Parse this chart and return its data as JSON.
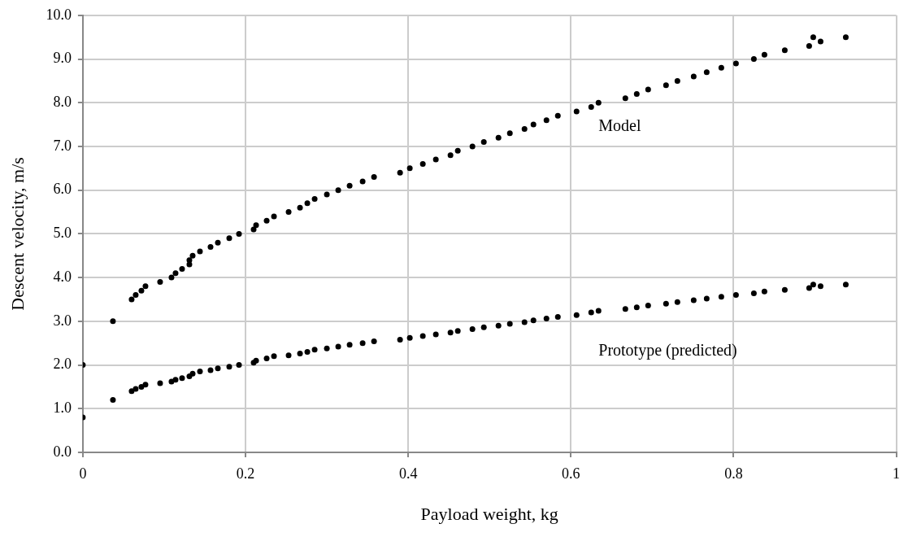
{
  "chart_data": {
    "type": "scatter",
    "xlabel": "Payload weight, kg",
    "ylabel": "Descent velocity, m/s",
    "xlim": [
      0,
      1
    ],
    "xticks": [
      0,
      0.2,
      0.4,
      0.6,
      0.8,
      1
    ],
    "ylim": [
      0,
      10
    ],
    "yticks": [
      {
        "value": 0,
        "label": "0.0"
      },
      {
        "value": 1,
        "label": "1.0"
      },
      {
        "value": 2,
        "label": "2.0"
      },
      {
        "value": 3,
        "label": "3.0"
      },
      {
        "value": 4,
        "label": "4.0"
      },
      {
        "value": 5,
        "label": "5.0"
      },
      {
        "value": 6,
        "label": "6.0"
      },
      {
        "value": 7,
        "label": "7.0"
      },
      {
        "value": 8,
        "label": "8.0"
      },
      {
        "value": 9,
        "label": "9.0"
      },
      {
        "value": 10,
        "label": "10.0"
      }
    ],
    "grid": true,
    "legend": false,
    "marker": "circle",
    "series": [
      {
        "name": "Model",
        "color": "#000000",
        "x": [
          0,
          0.037,
          0.06,
          0.065,
          0.072,
          0.077,
          0.095,
          0.109,
          0.114,
          0.122,
          0.131,
          0.131,
          0.135,
          0.144,
          0.157,
          0.166,
          0.18,
          0.192,
          0.21,
          0.213,
          0.226,
          0.235,
          0.253,
          0.267,
          0.276,
          0.285,
          0.3,
          0.314,
          0.328,
          0.344,
          0.358,
          0.39,
          0.402,
          0.418,
          0.434,
          0.452,
          0.461,
          0.479,
          0.493,
          0.511,
          0.525,
          0.543,
          0.554,
          0.57,
          0.584,
          0.607,
          0.625,
          0.634,
          0.667,
          0.681,
          0.695,
          0.717,
          0.731,
          0.751,
          0.767,
          0.785,
          0.803,
          0.825,
          0.838,
          0.863,
          0.893,
          0.898,
          0.907,
          0.938
        ],
        "values": [
          2.0,
          3.0,
          3.5,
          3.6,
          3.7,
          3.8,
          3.9,
          4.0,
          4.1,
          4.2,
          4.3,
          4.4,
          4.5,
          4.6,
          4.7,
          4.8,
          4.9,
          5.0,
          5.1,
          5.2,
          5.3,
          5.4,
          5.5,
          5.6,
          5.7,
          5.8,
          5.9,
          6.0,
          6.1,
          6.2,
          6.3,
          6.4,
          6.5,
          6.6,
          6.7,
          6.8,
          6.9,
          7.0,
          7.1,
          7.2,
          7.3,
          7.4,
          7.5,
          7.6,
          7.7,
          7.8,
          7.9,
          8.0,
          8.1,
          8.2,
          8.3,
          8.4,
          8.5,
          8.6,
          8.7,
          8.8,
          8.9,
          9.0,
          9.1,
          9.2,
          9.3,
          9.5,
          9.4,
          9.5
        ]
      },
      {
        "name": "Prototype (predicted)",
        "color": "#000000",
        "x": [
          0,
          0.037,
          0.06,
          0.065,
          0.072,
          0.077,
          0.095,
          0.109,
          0.114,
          0.122,
          0.131,
          0.135,
          0.144,
          0.157,
          0.166,
          0.18,
          0.192,
          0.21,
          0.213,
          0.226,
          0.235,
          0.253,
          0.267,
          0.276,
          0.285,
          0.3,
          0.314,
          0.328,
          0.344,
          0.358,
          0.39,
          0.402,
          0.418,
          0.434,
          0.452,
          0.461,
          0.479,
          0.493,
          0.511,
          0.525,
          0.543,
          0.554,
          0.57,
          0.584,
          0.607,
          0.625,
          0.634,
          0.667,
          0.681,
          0.695,
          0.717,
          0.731,
          0.751,
          0.767,
          0.785,
          0.803,
          0.825,
          0.838,
          0.863,
          0.893,
          0.898,
          0.907,
          0.938
        ],
        "values": [
          0.8,
          1.2,
          1.4,
          1.45,
          1.5,
          1.55,
          1.58,
          1.62,
          1.66,
          1.7,
          1.74,
          1.8,
          1.85,
          1.88,
          1.92,
          1.96,
          2.0,
          2.05,
          2.1,
          2.15,
          2.2,
          2.22,
          2.26,
          2.3,
          2.35,
          2.38,
          2.42,
          2.46,
          2.5,
          2.54,
          2.58,
          2.62,
          2.66,
          2.7,
          2.74,
          2.78,
          2.82,
          2.86,
          2.9,
          2.94,
          2.98,
          3.02,
          3.06,
          3.1,
          3.14,
          3.2,
          3.24,
          3.28,
          3.32,
          3.36,
          3.4,
          3.44,
          3.48,
          3.52,
          3.56,
          3.6,
          3.64,
          3.68,
          3.72,
          3.76,
          3.84,
          3.8,
          3.84
        ]
      }
    ]
  }
}
